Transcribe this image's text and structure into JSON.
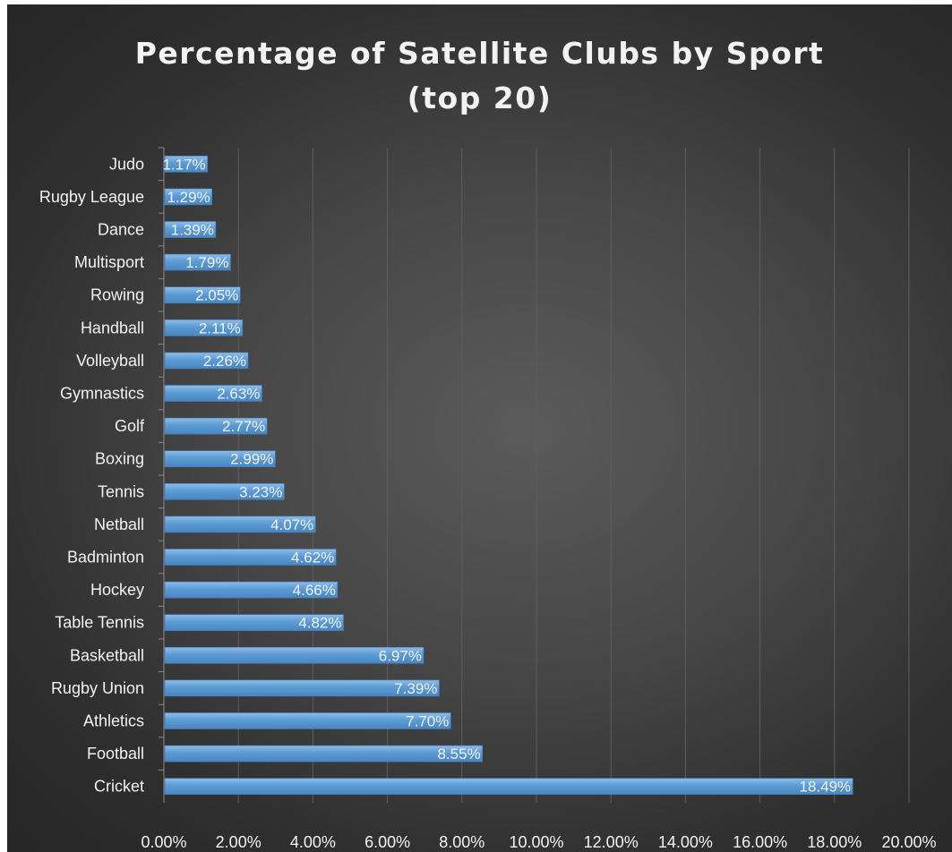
{
  "chart_data": {
    "type": "bar",
    "orientation": "horizontal",
    "title": "Percentage of Satellite Clubs by Sport (top 20)",
    "title_lines": [
      "Percentage of Satellite Clubs by Sport",
      "(top 20)"
    ],
    "categories": [
      "Judo",
      "Rugby League",
      "Dance",
      "Multisport",
      "Rowing",
      "Handball",
      "Volleyball",
      "Gymnastics",
      "Golf",
      "Boxing",
      "Tennis",
      "Netball",
      "Badminton",
      "Hockey",
      "Table Tennis",
      "Basketball",
      "Rugby Union",
      "Athletics",
      "Football",
      "Cricket"
    ],
    "values": [
      1.17,
      1.29,
      1.39,
      1.79,
      2.05,
      2.11,
      2.26,
      2.63,
      2.77,
      2.99,
      3.23,
      4.07,
      4.62,
      4.66,
      4.82,
      6.97,
      7.39,
      7.7,
      8.55,
      18.49
    ],
    "data_labels": [
      "1.17%",
      "1.29%",
      "1.39%",
      "1.79%",
      "2.05%",
      "2.11%",
      "2.26%",
      "2.63%",
      "2.77%",
      "2.99%",
      "3.23%",
      "4.07%",
      "4.62%",
      "4.66%",
      "4.82%",
      "6.97%",
      "7.39%",
      "7.70%",
      "8.55%",
      "18.49%"
    ],
    "x_ticks": [
      "0.00%",
      "2.00%",
      "4.00%",
      "6.00%",
      "8.00%",
      "10.00%",
      "12.00%",
      "14.00%",
      "16.00%",
      "18.00%",
      "20.00%"
    ],
    "xlim": [
      0,
      20
    ],
    "xlabel": "",
    "ylabel": "",
    "grid": "vertical",
    "legend": "none",
    "colors": {
      "bar": "#5b9bd5",
      "bar_highlight": "#8fbce6",
      "background": "#404040",
      "text": "#f2f2f2",
      "grid": "#5e5e5e",
      "axis": "#8a8a8a"
    }
  }
}
